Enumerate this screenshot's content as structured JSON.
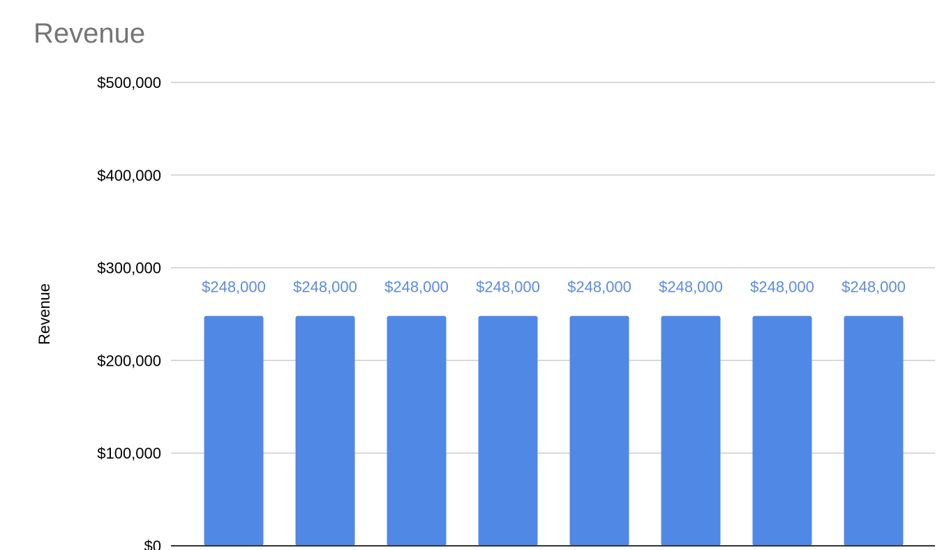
{
  "chart_data": {
    "type": "bar",
    "title": "Revenue",
    "xlabel": "",
    "ylabel": "Revenue",
    "categories": [
      "",
      "",
      "",
      "",
      "",
      "",
      "",
      ""
    ],
    "series": [
      {
        "values": [
          248000,
          248000,
          248000,
          248000,
          248000,
          248000,
          248000,
          248000
        ],
        "data_labels": [
          "$248,000",
          "$248,000",
          "$248,000",
          "$248,000",
          "$248,000",
          "$248,000",
          "$248,000",
          "$248,000"
        ]
      }
    ],
    "ylim": [
      0,
      500000
    ],
    "yticks": [
      0,
      100000,
      200000,
      300000,
      400000,
      500000
    ],
    "ytick_labels": [
      "$0",
      "$100,000",
      "$200,000",
      "$300,000",
      "$400,000",
      "$500,000"
    ],
    "grid": true,
    "legend": "none",
    "colors": {
      "bar": "#5088e6",
      "data_label": "#5a8be8",
      "gridline": "#cccccc",
      "axis": "#333333",
      "title": "#757575"
    }
  }
}
